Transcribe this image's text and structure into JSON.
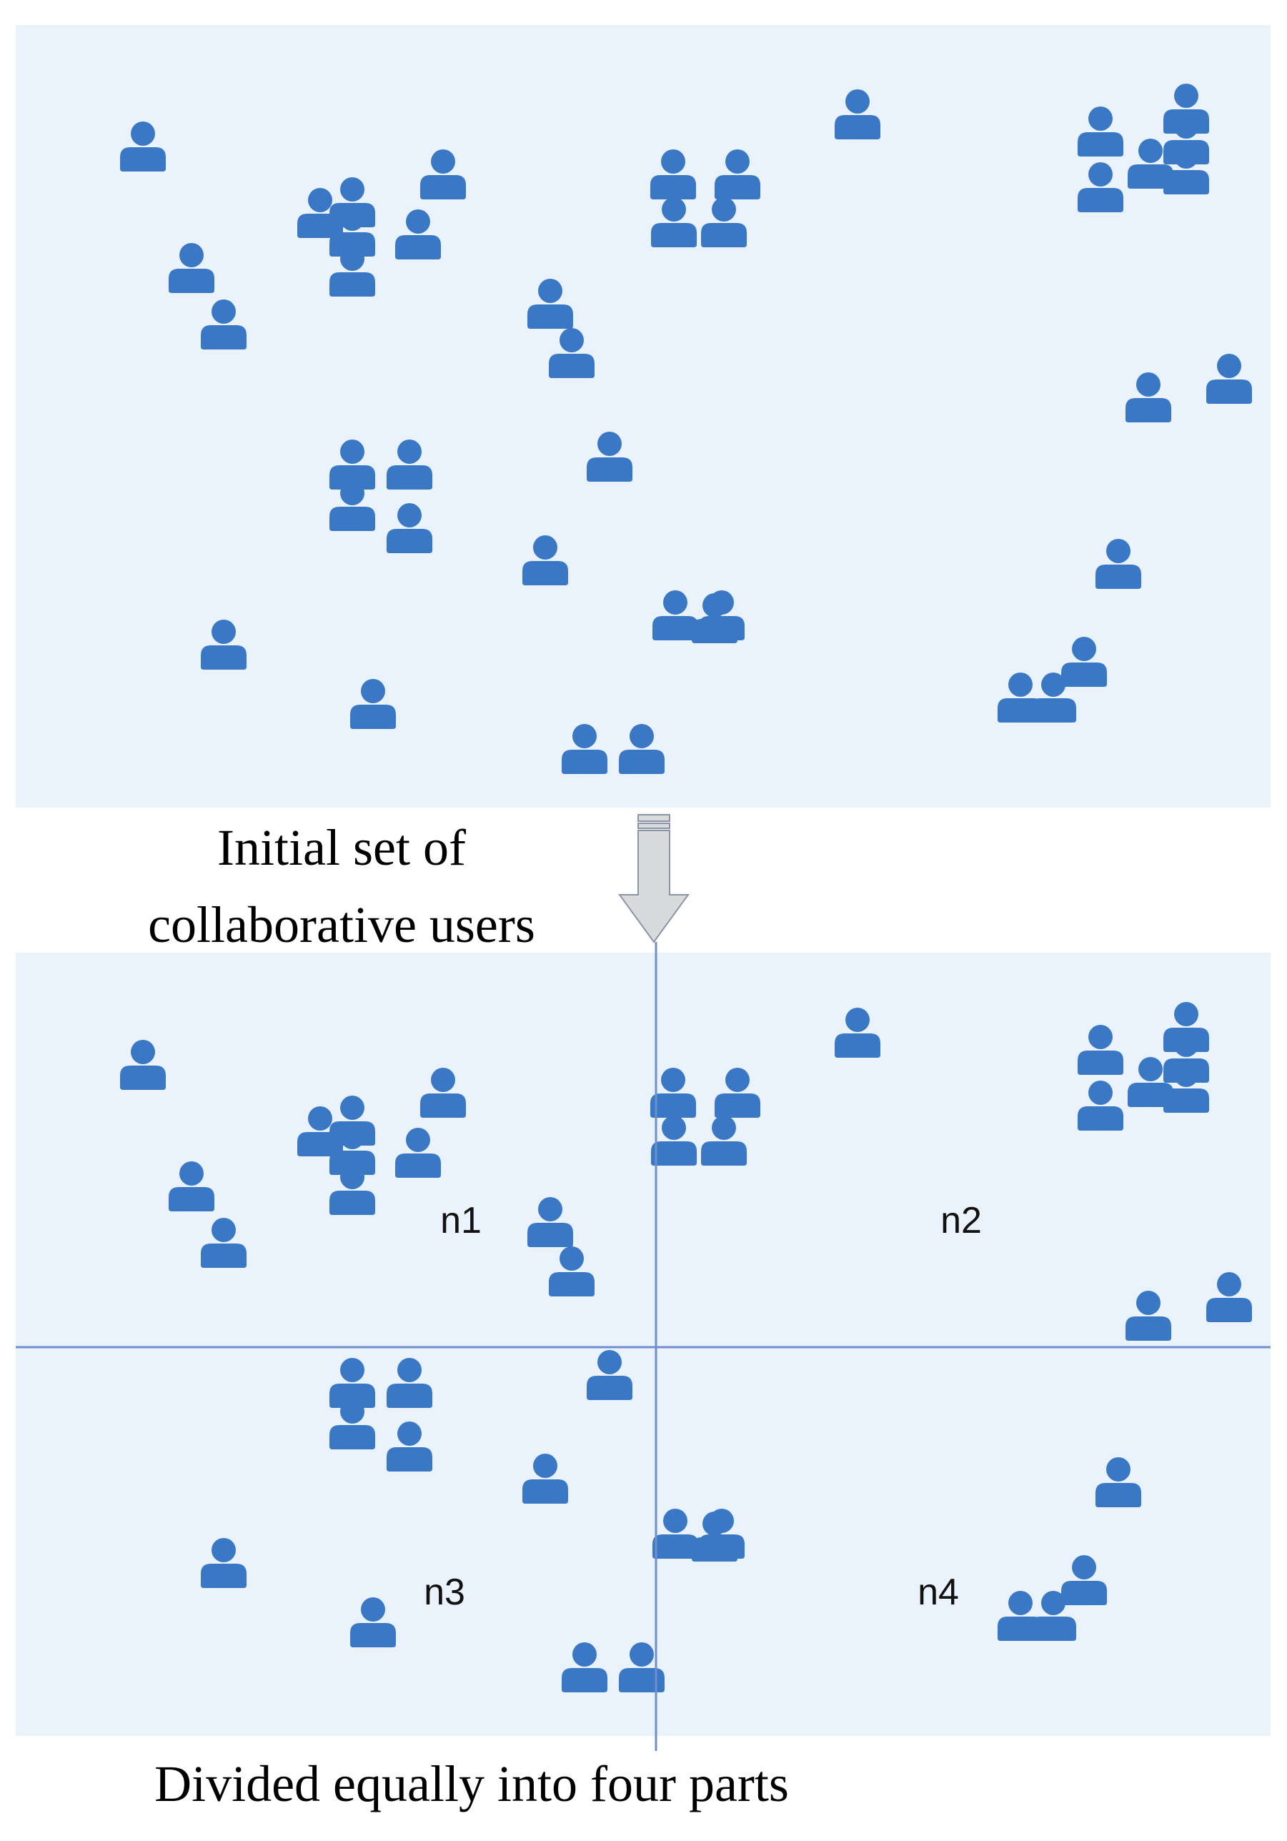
{
  "colors": {
    "panel_fill": "#eaf3fc",
    "user_icon": "#3a78c6",
    "divider_line": "#6f8fcb",
    "arrow_fill": "#d9dadc",
    "arrow_stroke": "#8a96a8"
  },
  "top_panel": {
    "caption_line1": "Initial set of",
    "caption_line2": "collaborative users",
    "icon": "user-icon"
  },
  "bottom_panel": {
    "caption": "Divided equally into four parts",
    "regions": [
      {
        "id": "n1",
        "label": "n1"
      },
      {
        "id": "n2",
        "label": "n2"
      },
      {
        "id": "n3",
        "label": "n3"
      },
      {
        "id": "n4",
        "label": "n4"
      }
    ],
    "icon": "user-icon"
  },
  "transition_arrow": {
    "icon": "down-arrow-icon"
  }
}
